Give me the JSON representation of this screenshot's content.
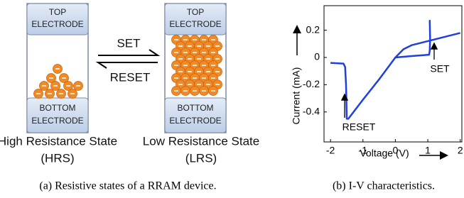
{
  "diagram": {
    "left_cell": {
      "top_electrode": [
        "TOP",
        "ELECTRODE"
      ],
      "bottom_electrode": [
        "BOTTOM",
        "ELECTRODE"
      ],
      "label": [
        "High Resistance State",
        "(HRS)"
      ]
    },
    "right_cell": {
      "top_electrode": [
        "TOP",
        "ELECTRODE"
      ],
      "bottom_electrode": [
        "BOTTOM",
        "ELECTRODE"
      ],
      "label": [
        "Low Resistance State",
        "(LRS)"
      ]
    },
    "arrows": {
      "forward": "SET",
      "backward": "RESET"
    },
    "caption": "(a) Resistive states of a RRAM device."
  },
  "chart_data": {
    "type": "line",
    "xlabel": "Voltage (V)",
    "ylabel": "Current (mA)",
    "xlim": [
      -2.2,
      2.05
    ],
    "ylim": [
      -0.62,
      0.38
    ],
    "xticks": [
      -2,
      -1,
      0,
      1,
      2
    ],
    "yticks": [
      -0.4,
      -0.2,
      0,
      0.2
    ],
    "grid": false,
    "annotations": [
      "SET",
      "RESET"
    ],
    "series": [
      {
        "color": "#1f3fe0",
        "x": [
          -2,
          -1.6,
          -1.55,
          -1.52,
          -1.5,
          -1.45,
          -1,
          -0.5,
          0,
          0.25,
          0.5,
          1,
          1.5,
          2,
          null,
          0,
          0.5,
          1.04,
          1.06,
          1.07,
          1.06,
          1.07
        ],
        "values": [
          -0.04,
          -0.045,
          -0.07,
          -0.2,
          -0.45,
          -0.45,
          -0.31,
          -0.16,
          0,
          0.06,
          0.09,
          0.12,
          0.15,
          0.18,
          null,
          0,
          0.01,
          0.02,
          0.05,
          0.13,
          0.27,
          0.14
        ]
      }
    ],
    "caption": "(b) I-V characteristics."
  }
}
